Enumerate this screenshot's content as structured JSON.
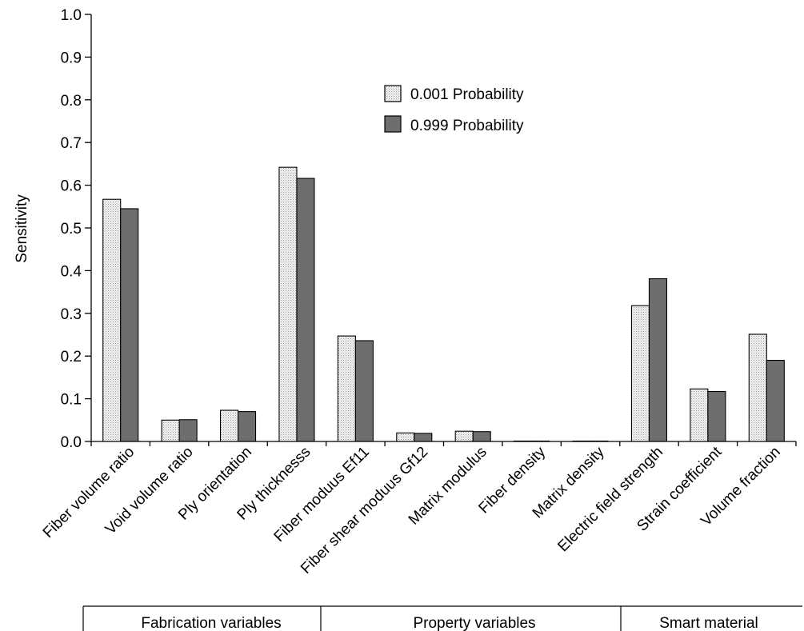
{
  "chart_data": {
    "type": "bar",
    "ylabel": "Sensitivity",
    "ylim": [
      0,
      1.0
    ],
    "yticks": [
      "0.0",
      "0.1",
      "0.2",
      "0.3",
      "0.4",
      "0.5",
      "0.6",
      "0.7",
      "0.8",
      "0.9",
      "1.0"
    ],
    "categories": [
      "Fiber volume ratio",
      "Void volume ratio",
      "Ply orientation",
      "Ply thicknesss",
      "Fiber moduus Ef11",
      "Fiber shear moduus Gf12",
      "Matrix modulus",
      "Fiber density",
      "Matrix density",
      "Electric field strength",
      "Strain coefficient",
      "Volume fraction"
    ],
    "series": [
      {
        "name": "0.001 Probability",
        "color": "#e6e6e6",
        "pattern": "dotted",
        "values": [
          0.567,
          0.05,
          0.073,
          0.642,
          0.247,
          0.02,
          0.024,
          0.001,
          0.001,
          0.318,
          0.123,
          0.251
        ]
      },
      {
        "name": "0.999 Probability",
        "color": "#6e6e6e",
        "values": [
          0.545,
          0.051,
          0.07,
          0.616,
          0.236,
          0.019,
          0.023,
          0.001,
          0.001,
          0.381,
          0.117,
          0.19
        ]
      }
    ],
    "legend_position": "upper-center",
    "groups": [
      {
        "label": "Fabrication variables",
        "span": [
          0,
          3
        ]
      },
      {
        "label": "Property variables",
        "span": [
          4,
          8
        ]
      },
      {
        "label": "Smart material",
        "span": [
          9,
          11
        ]
      }
    ]
  }
}
